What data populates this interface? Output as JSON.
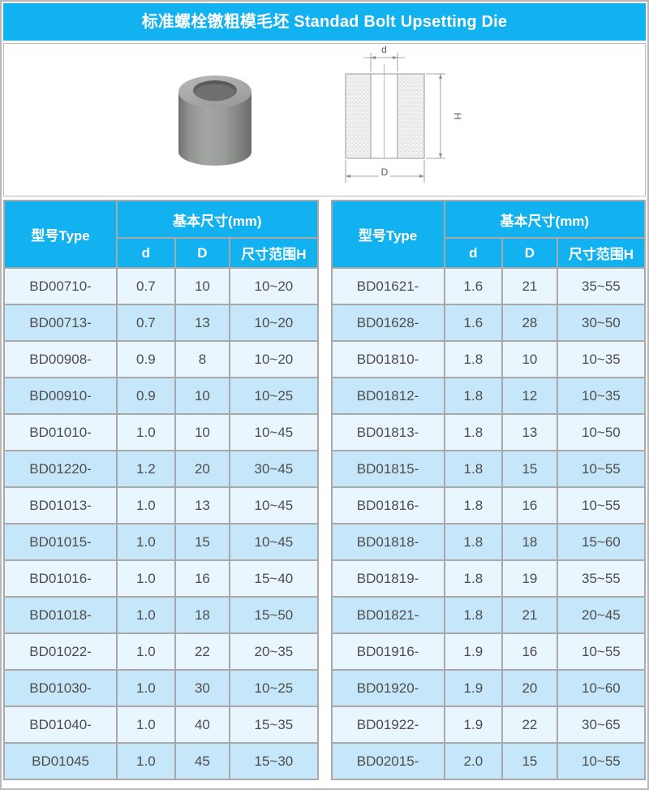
{
  "page": {
    "title": "标准螺栓镦粗模毛坯 Standad Bolt Upsetting Die"
  },
  "diagram": {
    "labels": {
      "d": "d",
      "D": "D",
      "H": "H"
    }
  },
  "table_headers": {
    "type": "型号Type",
    "basic_size": "基本尺寸(mm)",
    "d": "d",
    "D": "D",
    "range_h": "尺寸范围H"
  },
  "tables": [
    {
      "side": "left",
      "rows": [
        {
          "type": "BD00710-",
          "d": "0.7",
          "D": "10",
          "h_range": "10~20"
        },
        {
          "type": "BD00713-",
          "d": "0.7",
          "D": "13",
          "h_range": "10~20"
        },
        {
          "type": "BD00908-",
          "d": "0.9",
          "D": "8",
          "h_range": "10~20"
        },
        {
          "type": "BD00910-",
          "d": "0.9",
          "D": "10",
          "h_range": "10~25"
        },
        {
          "type": "BD01010-",
          "d": "1.0",
          "D": "10",
          "h_range": "10~45"
        },
        {
          "type": "BD01220-",
          "d": "1.2",
          "D": "20",
          "h_range": "30~45"
        },
        {
          "type": "BD01013-",
          "d": "1.0",
          "D": "13",
          "h_range": "10~45"
        },
        {
          "type": "BD01015-",
          "d": "1.0",
          "D": "15",
          "h_range": "10~45"
        },
        {
          "type": "BD01016-",
          "d": "1.0",
          "D": "16",
          "h_range": "15~40"
        },
        {
          "type": "BD01018-",
          "d": "1.0",
          "D": "18",
          "h_range": "15~50"
        },
        {
          "type": "BD01022-",
          "d": "1.0",
          "D": "22",
          "h_range": "20~35"
        },
        {
          "type": "BD01030-",
          "d": "1.0",
          "D": "30",
          "h_range": "10~25"
        },
        {
          "type": "BD01040-",
          "d": "1.0",
          "D": "40",
          "h_range": "15~35"
        },
        {
          "type": "BD01045",
          "d": "1.0",
          "D": "45",
          "h_range": "15~30"
        }
      ]
    },
    {
      "side": "right",
      "rows": [
        {
          "type": "BD01621-",
          "d": "1.6",
          "D": "21",
          "h_range": "35~55"
        },
        {
          "type": "BD01628-",
          "d": "1.6",
          "D": "28",
          "h_range": "30~50"
        },
        {
          "type": "BD01810-",
          "d": "1.8",
          "D": "10",
          "h_range": "10~35"
        },
        {
          "type": "BD01812-",
          "d": "1.8",
          "D": "12",
          "h_range": "10~35"
        },
        {
          "type": "BD01813-",
          "d": "1.8",
          "D": "13",
          "h_range": "10~50"
        },
        {
          "type": "BD01815-",
          "d": "1.8",
          "D": "15",
          "h_range": "10~55"
        },
        {
          "type": "BD01816-",
          "d": "1.8",
          "D": "16",
          "h_range": "10~55"
        },
        {
          "type": "BD01818-",
          "d": "1.8",
          "D": "18",
          "h_range": "15~60"
        },
        {
          "type": "BD01819-",
          "d": "1.8",
          "D": "19",
          "h_range": "35~55"
        },
        {
          "type": "BD01821-",
          "d": "1.8",
          "D": "21",
          "h_range": "20~45"
        },
        {
          "type": "BD01916-",
          "d": "1.9",
          "D": "16",
          "h_range": "10~55"
        },
        {
          "type": "BD01920-",
          "d": "1.9",
          "D": "20",
          "h_range": "10~60"
        },
        {
          "type": "BD01922-",
          "d": "1.9",
          "D": "22",
          "h_range": "30~65"
        },
        {
          "type": "BD02015-",
          "d": "2.0",
          "D": "15",
          "h_range": "10~55"
        }
      ]
    }
  ],
  "colors": {
    "header_blue": "#12b1ef",
    "row_odd": "#eaf6fd",
    "row_even": "#c6e7f9",
    "grid_gray": "#a9a9a9",
    "text_dark": "#4d4d4d"
  }
}
